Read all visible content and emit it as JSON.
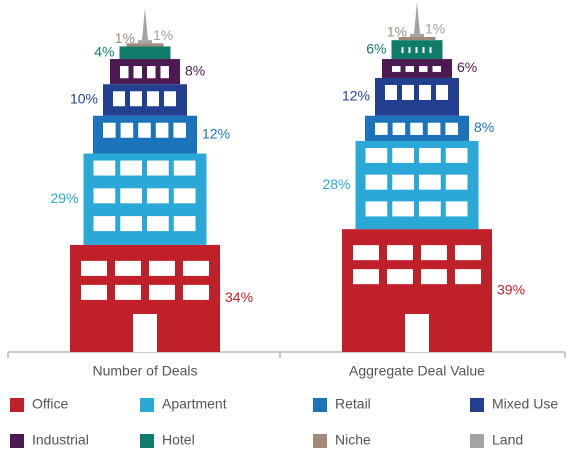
{
  "chart_data": {
    "type": "bar",
    "stacked": true,
    "categories": [
      "Number of Deals",
      "Aggregate Deal Value"
    ],
    "series": [
      {
        "name": "Office",
        "color": "#c0202a",
        "values": [
          34,
          39
        ],
        "value_labels": [
          "34%",
          "39%"
        ]
      },
      {
        "name": "Apartment",
        "color": "#2aa9d8",
        "values": [
          29,
          28
        ],
        "value_labels": [
          "29%",
          "28%"
        ]
      },
      {
        "name": "Retail",
        "color": "#1b74bb",
        "values": [
          12,
          8
        ],
        "value_labels": [
          "12%",
          "8%"
        ]
      },
      {
        "name": "Mixed Use",
        "color": "#233f8f",
        "values": [
          10,
          12
        ],
        "value_labels": [
          "10%",
          "12%"
        ]
      },
      {
        "name": "Industrial",
        "color": "#4b1a50",
        "values": [
          8,
          6
        ],
        "value_labels": [
          "8%",
          "6%"
        ]
      },
      {
        "name": "Hotel",
        "color": "#0f7b6a",
        "values": [
          4,
          6
        ],
        "value_labels": [
          "4%",
          "6%"
        ]
      },
      {
        "name": "Niche",
        "color": "#a28a7a",
        "values": [
          1,
          1
        ],
        "value_labels": [
          "1%",
          "1%"
        ]
      },
      {
        "name": "Land",
        "color": "#a3a3a3",
        "values": [
          1,
          1
        ],
        "value_labels": [
          "1%",
          "1%"
        ]
      }
    ],
    "legend": "bottom"
  }
}
